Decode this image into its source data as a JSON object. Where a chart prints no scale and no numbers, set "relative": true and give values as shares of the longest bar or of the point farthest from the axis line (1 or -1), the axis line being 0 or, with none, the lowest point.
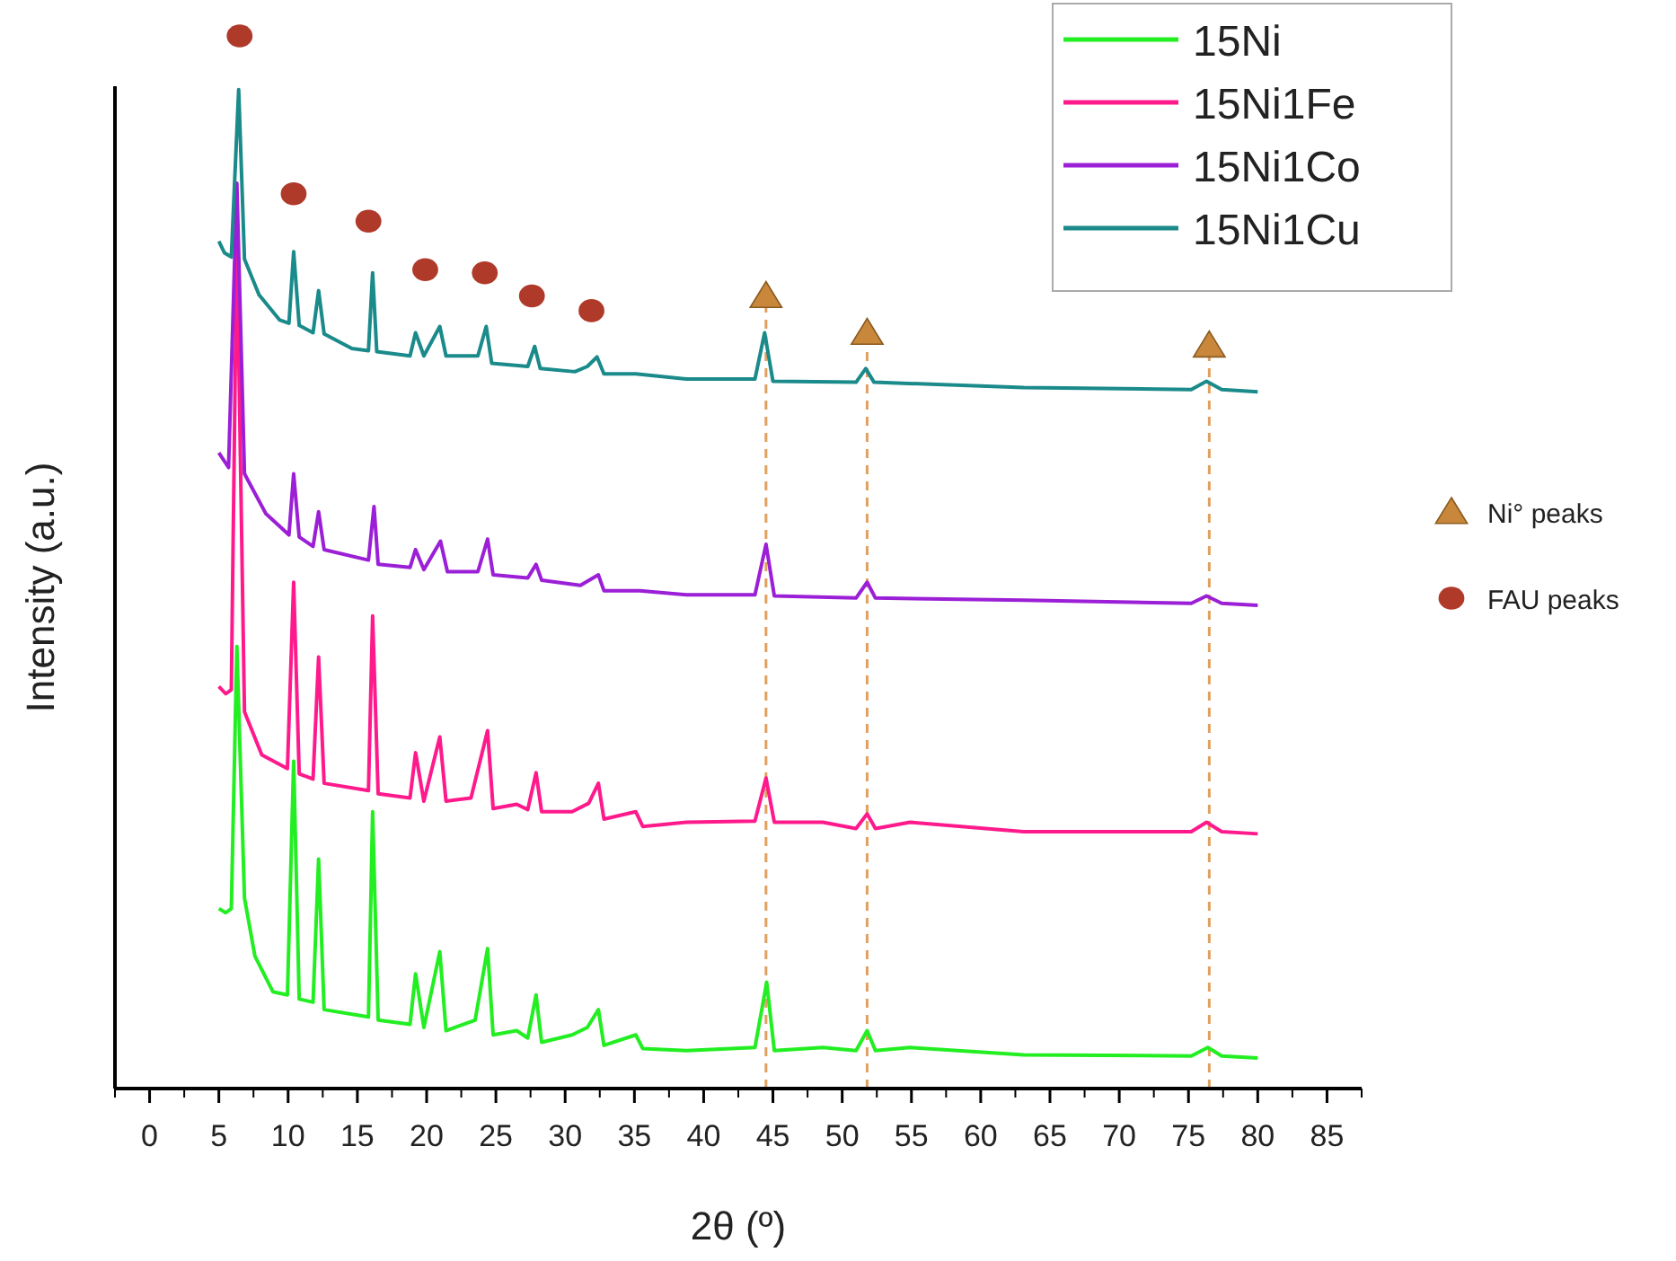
{
  "chart_data": {
    "type": "line",
    "relative": true,
    "xlabel": "2θ (º)",
    "ylabel": "Intensity (a.u.)",
    "xlim": [
      -2.5,
      87.5
    ],
    "xticks": [
      0,
      5,
      10,
      15,
      20,
      25,
      30,
      35,
      40,
      45,
      50,
      55,
      60,
      65,
      70,
      75,
      80,
      85
    ],
    "legend": "top right",
    "grid": false,
    "line_style": "solid",
    "marker": "none",
    "ref_lines": [
      {
        "axis": "x",
        "value": 44.5,
        "color": "#e0a060",
        "line_style": "dashed"
      },
      {
        "axis": "x",
        "value": 51.8,
        "color": "#e0a060",
        "line_style": "dashed"
      },
      {
        "axis": "x",
        "value": 76.5,
        "color": "#e0a060",
        "line_style": "dashed"
      }
    ],
    "series": [
      {
        "name": "15Ni",
        "color": "#22ee22",
        "x": [
          5.0,
          5.5,
          5.9,
          6.3,
          6.85,
          7.6,
          8.9,
          9.95,
          10.4,
          10.8,
          11.8,
          12.2,
          12.6,
          15.8,
          16.1,
          16.5,
          18.8,
          19.2,
          19.8,
          20.95,
          21.4,
          23.5,
          24.4,
          24.8,
          26.5,
          27.3,
          27.9,
          28.3,
          30.5,
          31.6,
          32.4,
          32.8,
          35.1,
          35.6,
          38.8,
          43.7,
          44.55,
          45.1,
          48.6,
          51.0,
          51.8,
          52.4,
          54.9,
          63.1,
          75.2,
          76.4,
          77.4,
          80
        ],
        "values": [
          0.171,
          0.167,
          0.171,
          0.42,
          0.181,
          0.126,
          0.092,
          0.089,
          0.311,
          0.085,
          0.082,
          0.218,
          0.075,
          0.068,
          0.263,
          0.065,
          0.061,
          0.109,
          0.058,
          0.13,
          0.055,
          0.065,
          0.133,
          0.051,
          0.055,
          0.048,
          0.089,
          0.044,
          0.051,
          0.058,
          0.075,
          0.041,
          0.051,
          0.038,
          0.036,
          0.039,
          0.101,
          0.036,
          0.039,
          0.036,
          0.055,
          0.036,
          0.039,
          0.032,
          0.031,
          0.039,
          0.031,
          0.029
        ]
      },
      {
        "name": "15Ni1Fe",
        "color": "#ff1a8c",
        "x": [
          5.0,
          5.5,
          5.9,
          6.3,
          6.85,
          8.1,
          9.95,
          10.4,
          10.8,
          11.8,
          12.2,
          12.6,
          15.8,
          16.1,
          16.5,
          18.8,
          19.2,
          19.8,
          20.95,
          21.4,
          23.2,
          24.4,
          24.8,
          26.5,
          27.3,
          27.9,
          28.3,
          30.5,
          31.7,
          32.4,
          32.8,
          35.1,
          35.6,
          38.8,
          43.7,
          44.5,
          45.1,
          48.6,
          51.0,
          51.8,
          52.4,
          54.9,
          63.1,
          75.2,
          76.3,
          77.4,
          80
        ],
        "values": [
          0.382,
          0.375,
          0.379,
          0.809,
          0.358,
          0.317,
          0.304,
          0.481,
          0.299,
          0.294,
          0.41,
          0.29,
          0.283,
          0.449,
          0.28,
          0.276,
          0.319,
          0.273,
          0.334,
          0.273,
          0.276,
          0.34,
          0.266,
          0.27,
          0.265,
          0.3,
          0.263,
          0.263,
          0.271,
          0.29,
          0.256,
          0.263,
          0.249,
          0.253,
          0.254,
          0.295,
          0.253,
          0.253,
          0.247,
          0.261,
          0.247,
          0.253,
          0.244,
          0.244,
          0.253,
          0.244,
          0.242
        ]
      },
      {
        "name": "15Ni1Co",
        "color": "#9b1fd6",
        "x": [
          5.0,
          5.7,
          6.3,
          6.85,
          8.4,
          10.06,
          10.4,
          10.8,
          11.8,
          12.2,
          12.6,
          15.8,
          16.2,
          16.5,
          18.8,
          19.2,
          19.8,
          21.0,
          21.5,
          23.7,
          24.4,
          24.8,
          27.3,
          27.9,
          28.3,
          31.1,
          32.4,
          32.8,
          35.4,
          38.8,
          43.7,
          44.5,
          45.1,
          51.0,
          51.8,
          52.4,
          63.1,
          75.2,
          76.3,
          77.4,
          80
        ],
        "values": [
          0.604,
          0.59,
          0.86,
          0.584,
          0.546,
          0.526,
          0.584,
          0.524,
          0.515,
          0.548,
          0.512,
          0.502,
          0.553,
          0.498,
          0.495,
          0.512,
          0.493,
          0.52,
          0.491,
          0.491,
          0.522,
          0.488,
          0.485,
          0.498,
          0.483,
          0.478,
          0.488,
          0.473,
          0.473,
          0.469,
          0.469,
          0.517,
          0.468,
          0.466,
          0.481,
          0.466,
          0.464,
          0.461,
          0.468,
          0.461,
          0.459
        ]
      },
      {
        "name": "15Ni1Cu",
        "color": "#1a8a8a",
        "x": [
          5.0,
          5.4,
          5.9,
          6.43,
          6.85,
          7.9,
          9.4,
          10.06,
          10.4,
          10.8,
          11.8,
          12.2,
          12.6,
          14.6,
          15.8,
          16.1,
          16.4,
          18.8,
          19.2,
          19.8,
          20.95,
          21.4,
          23.7,
          24.3,
          24.7,
          27.3,
          27.8,
          28.2,
          30.7,
          31.6,
          32.3,
          32.8,
          35.1,
          38.8,
          43.7,
          44.4,
          45.0,
          51.0,
          51.7,
          52.3,
          63.1,
          75.2,
          76.3,
          77.4,
          80.0
        ],
        "values": [
          0.805,
          0.794,
          0.79,
          0.949,
          0.788,
          0.754,
          0.73,
          0.727,
          0.795,
          0.725,
          0.718,
          0.758,
          0.717,
          0.703,
          0.701,
          0.775,
          0.7,
          0.696,
          0.718,
          0.696,
          0.724,
          0.696,
          0.696,
          0.724,
          0.689,
          0.686,
          0.705,
          0.684,
          0.681,
          0.686,
          0.695,
          0.679,
          0.679,
          0.674,
          0.674,
          0.718,
          0.672,
          0.671,
          0.684,
          0.671,
          0.666,
          0.664,
          0.672,
          0.664,
          0.662
        ]
      },
      {
        "name": "Ni° peaks",
        "type": "scatter",
        "marker": "triangle",
        "color": "#c8873a",
        "x": [
          44.5,
          51.8,
          76.5
        ],
        "values": [
          0.753,
          0.718,
          0.706
        ]
      },
      {
        "name": "FAU peaks",
        "type": "scatter",
        "marker": "circle",
        "color": "#b03a2a",
        "x": [
          6.5,
          10.4,
          15.8,
          19.9,
          24.2,
          27.6,
          31.9
        ],
        "values": [
          1.0,
          0.85,
          0.824,
          0.778,
          0.775,
          0.753,
          0.739
        ]
      }
    ]
  }
}
